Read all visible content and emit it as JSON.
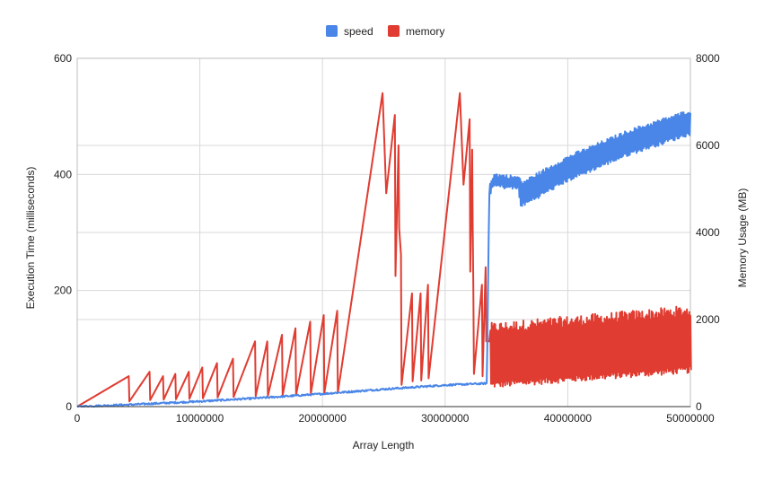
{
  "chart_data": {
    "type": "line",
    "title": "",
    "xlabel": "Array Length",
    "ylabel": "Execution Time (milliseconds)",
    "y2label": "Memory Usage (MB)",
    "xlim": [
      0,
      50000000
    ],
    "ylim": [
      0,
      600
    ],
    "y2lim": [
      0,
      8000
    ],
    "x_ticks": [
      0,
      10000000,
      20000000,
      30000000,
      40000000,
      50000000
    ],
    "x_tick_labels": [
      "0",
      "10000000",
      "20000000",
      "30000000",
      "40000000",
      "50000000"
    ],
    "y_ticks": [
      0,
      200,
      400,
      600
    ],
    "y_tick_labels": [
      "0",
      "200",
      "400",
      "600"
    ],
    "y2_ticks": [
      0,
      2000,
      4000,
      6000,
      8000
    ],
    "y2_tick_labels": [
      "0",
      "2000",
      "4000",
      "6000",
      "8000"
    ],
    "grid": true,
    "legend_position": "top",
    "series": [
      {
        "name": "speed",
        "axis": "left",
        "color": "#4a86e8",
        "noise": 7,
        "x": [
          0,
          5000000,
          10000000,
          15000000,
          20000000,
          25000000,
          30000000,
          33400000,
          33600000,
          34000000,
          36000000,
          36200000,
          40000000,
          45000000,
          50000000
        ],
        "values": [
          0,
          4,
          9,
          15,
          22,
          30,
          37,
          40,
          375,
          390,
          385,
          365,
          410,
          455,
          490
        ]
      },
      {
        "name": "memory",
        "axis": "right",
        "color": "#e03c31",
        "x": [
          0,
          4200000,
          4250000,
          5900000,
          5950000,
          7000000,
          7050000,
          8000000,
          8050000,
          9100000,
          9150000,
          10200000,
          10250000,
          11400000,
          11450000,
          12700000,
          12750000,
          14500000,
          14550000,
          15500000,
          15550000,
          16700000,
          16750000,
          17800000,
          17850000,
          19000000,
          19050000,
          20100000,
          20150000,
          21200000,
          21250000,
          24900000,
          25200000,
          25900000,
          25950000,
          26200000,
          26250000,
          26400000,
          26450000,
          27300000,
          27350000,
          28000000,
          28050000,
          28600000,
          28650000,
          31200000,
          31500000,
          32000000,
          32050000,
          32200000,
          32250000,
          32300000,
          32350000,
          33000000,
          33050000,
          33300000,
          33350000,
          33600000
        ],
        "values": [
          0,
          700,
          120,
          800,
          150,
          700,
          160,
          750,
          170,
          800,
          180,
          900,
          190,
          1000,
          210,
          1100,
          220,
          1500,
          240,
          1500,
          250,
          1650,
          260,
          1800,
          270,
          1950,
          290,
          2100,
          300,
          2200,
          320,
          7200,
          4900,
          6700,
          3000,
          6000,
          4100,
          3500,
          500,
          2600,
          580,
          2600,
          600,
          2800,
          650,
          7200,
          5100,
          6600,
          3100,
          5900,
          4200,
          2800,
          750,
          2800,
          700,
          3200,
          1500,
          1500
        ],
        "oscillation": {
          "x_start": 33700000,
          "x_end": 50000000,
          "cycles": 170,
          "low_start": 500,
          "low_end": 850,
          "high_start": 1800,
          "high_end": 2200
        }
      }
    ]
  }
}
